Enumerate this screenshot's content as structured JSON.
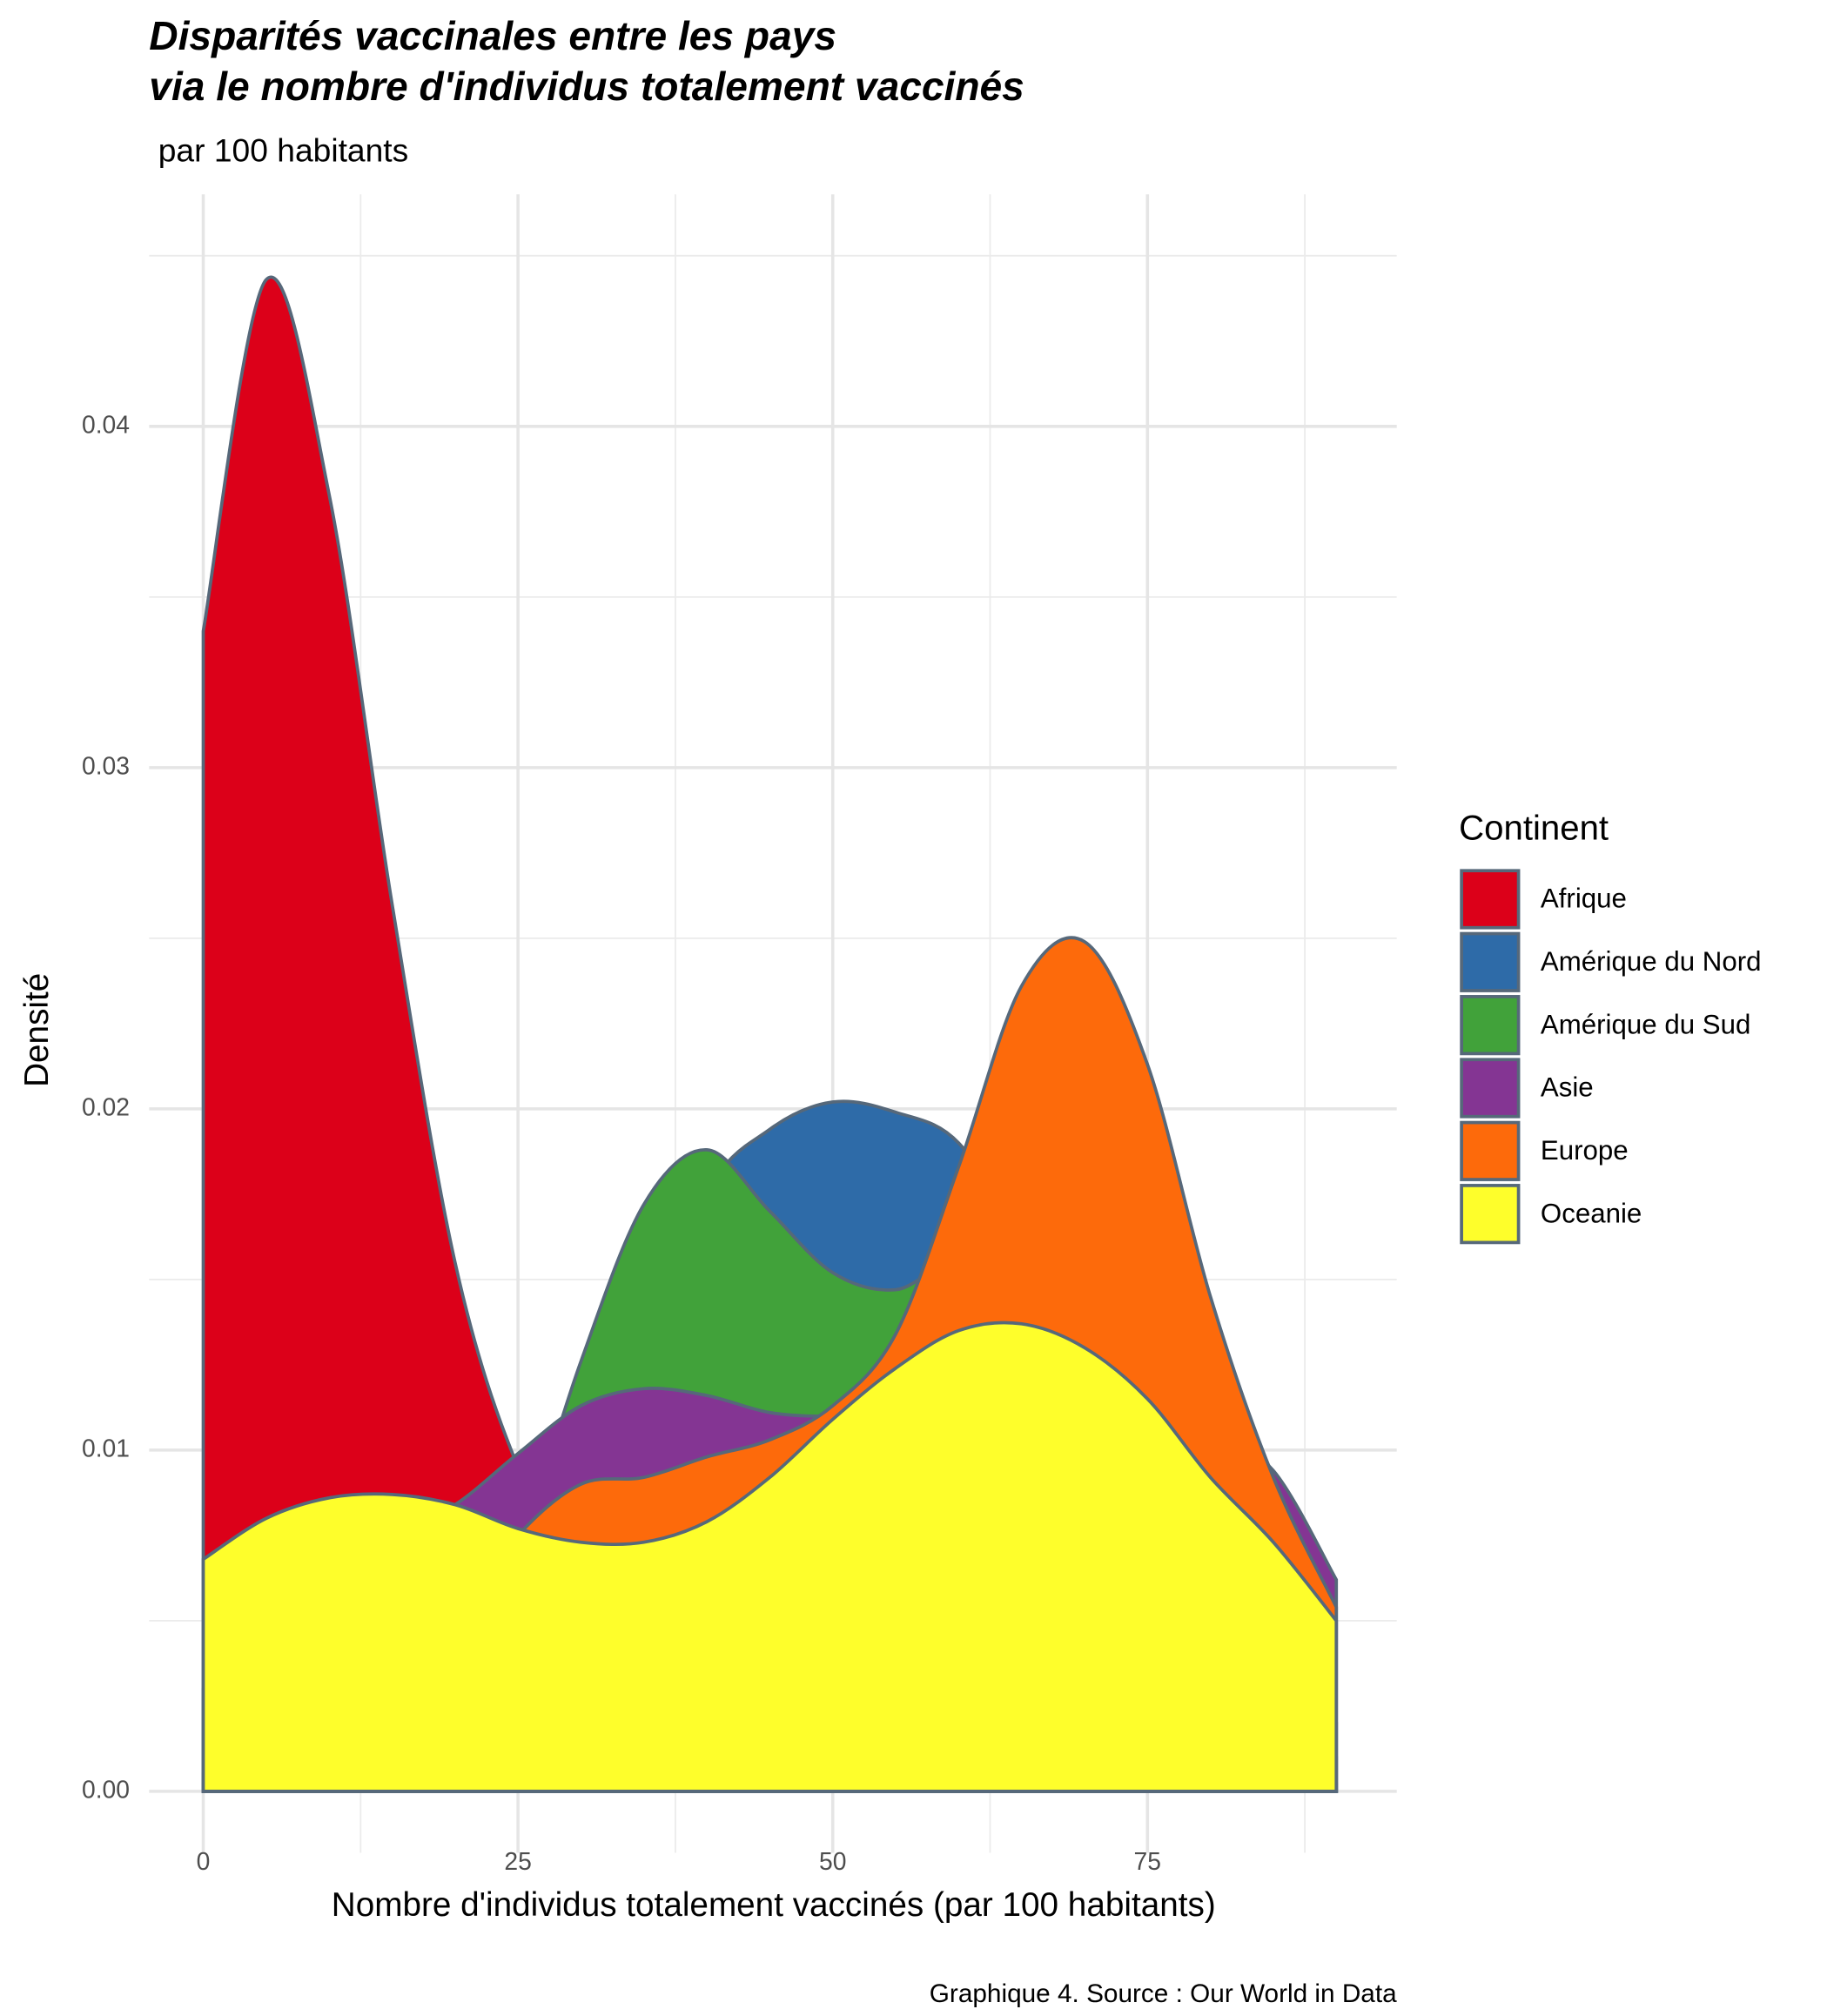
{
  "chart_data": {
    "type": "density",
    "title": [
      "Disparités vaccinales entre les pays",
      "via le nombre d'individus totalement vaccinés"
    ],
    "subtitle": "par 100 habitants",
    "x_label": "Nombre d'individus totalement vaccinés (par 100 habitants)",
    "y_label": "Densité",
    "caption": "Graphique 4. Source : Our World in Data",
    "legend_title": "Continent",
    "legend_position": "right",
    "grid": true,
    "outline_color": "#56687a",
    "xlim": [
      -4.3,
      94.8
    ],
    "ylim": [
      -0.0018,
      0.0468
    ],
    "xticks": [
      0,
      25,
      50,
      75
    ],
    "xminor": [
      12.5,
      37.5,
      62.5,
      87.5
    ],
    "yticks": [
      {
        "value": 0,
        "label": "0.00"
      },
      {
        "value": 0.01,
        "label": "0.01"
      },
      {
        "value": 0.02,
        "label": "0.02"
      },
      {
        "value": 0.03,
        "label": "0.03"
      },
      {
        "value": 0.04,
        "label": "0.04"
      }
    ],
    "yminor": [
      0.005,
      0.015,
      0.025,
      0.035,
      0.045
    ],
    "x": [
      0,
      5,
      10,
      15,
      20,
      25,
      30,
      35,
      40,
      45,
      50,
      55,
      60,
      65,
      70,
      75,
      80,
      85,
      90
    ],
    "series": [
      {
        "name": "Afrique",
        "color": "#dc0019",
        "values": [
          0.034,
          0.0443,
          0.038,
          0.026,
          0.0155,
          0.0095,
          0.0065,
          0.005,
          0.004,
          0.0035,
          0.003,
          0.0025,
          0.002,
          0.0015,
          0.001,
          0.0008,
          0.0005,
          0.0003,
          0.0002
        ]
      },
      {
        "name": "Amérique du Nord",
        "color": "#2e6ba8",
        "values": [
          0.0005,
          0.0006,
          0.0008,
          0.0012,
          0.002,
          0.004,
          0.007,
          0.012,
          0.0175,
          0.0194,
          0.0202,
          0.0199,
          0.019,
          0.016,
          0.012,
          0.008,
          0.005,
          0.003,
          0.002
        ]
      },
      {
        "name": "Amérique du Sud",
        "color": "#41a23a",
        "values": [
          0.0002,
          0.0002,
          0.0003,
          0.001,
          0.003,
          0.007,
          0.0126,
          0.0172,
          0.0188,
          0.017,
          0.0152,
          0.0147,
          0.0155,
          0.014,
          0.011,
          0.007,
          0.004,
          0.002,
          0.001
        ]
      },
      {
        "name": "Asie",
        "color": "#843593",
        "values": [
          0.003,
          0.004,
          0.006,
          0.0075,
          0.0084,
          0.0099,
          0.0113,
          0.0118,
          0.0116,
          0.0111,
          0.011,
          0.0112,
          0.0115,
          0.012,
          0.012,
          0.0115,
          0.0105,
          0.0094,
          0.0062
        ]
      },
      {
        "name": "Europe",
        "color": "#fd6a0b",
        "values": [
          0.0005,
          0.001,
          0.0015,
          0.003,
          0.005,
          0.0075,
          0.009,
          0.0092,
          0.0098,
          0.0103,
          0.0113,
          0.0134,
          0.0183,
          0.0236,
          0.0249,
          0.0213,
          0.0145,
          0.0092,
          0.0054
        ]
      },
      {
        "name": "Oceanie",
        "color": "#fefe2b",
        "values": [
          0.0068,
          0.008,
          0.0086,
          0.0087,
          0.0084,
          0.0077,
          0.0073,
          0.0073,
          0.0079,
          0.0092,
          0.0109,
          0.0124,
          0.0135,
          0.0137,
          0.013,
          0.0115,
          0.0092,
          0.0073,
          0.005
        ]
      }
    ]
  }
}
